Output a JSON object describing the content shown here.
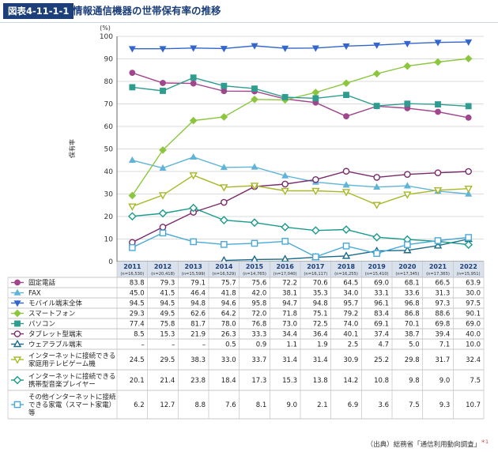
{
  "header": {
    "badge": "図表4-11-1-1",
    "title": "情報通信機器の世帯保有率の推移"
  },
  "source": {
    "text": "（出典）総務省「通信利用動向調査」",
    "mark": "＊1"
  },
  "chart_data": {
    "type": "line",
    "ylabel": "保有率",
    "yunit": "(%)",
    "ylim": [
      0,
      100
    ],
    "yticks": [
      0,
      10,
      20,
      30,
      40,
      50,
      60,
      70,
      80,
      90,
      100
    ],
    "grid": true,
    "legend": "table-below",
    "x": [
      "2011",
      "2012",
      "2013",
      "2014",
      "2015",
      "2016",
      "2017",
      "2018",
      "2019",
      "2020",
      "2021",
      "2022"
    ],
    "n": [
      "(n=16,530)",
      "(n=20,418)",
      "(n=15,599)",
      "(n=16,529)",
      "(n=14,765)",
      "(n=17,040)",
      "(n=16,117)",
      "(n=16,255)",
      "(n=15,410)",
      "(n=17,345)",
      "(n=17,365)",
      "(n=15,951)"
    ],
    "series": [
      {
        "name": "固定電話",
        "color": "#a0468c",
        "marker": "circle",
        "values": [
          83.8,
          79.3,
          79.1,
          75.7,
          75.6,
          72.2,
          70.6,
          64.5,
          69.0,
          68.1,
          66.5,
          63.9
        ],
        "labels": [
          "83.8",
          "79.3",
          "79.1",
          "75.7",
          "75.6",
          "72.2",
          "70.6",
          "64.5",
          "69.0",
          "68.1",
          "66.5",
          "63.9"
        ]
      },
      {
        "name": "FAX",
        "color": "#5fb4d8",
        "marker": "triangle",
        "values": [
          45.0,
          41.5,
          46.4,
          41.8,
          42.0,
          38.1,
          35.3,
          34.0,
          33.1,
          33.6,
          31.3,
          30.0
        ],
        "labels": [
          "45.0",
          "41.5",
          "46.4",
          "41.8",
          "42.0",
          "38.1",
          "35.3",
          "34.0",
          "33.1",
          "33.6",
          "31.3",
          "30.0"
        ]
      },
      {
        "name": "モバイル端末全体",
        "color": "#3366cc",
        "marker": "triangle-down",
        "values": [
          94.5,
          94.5,
          94.8,
          94.6,
          95.8,
          94.7,
          94.8,
          95.7,
          96.1,
          96.8,
          97.3,
          97.5
        ],
        "labels": [
          "94.5",
          "94.5",
          "94.8",
          "94.6",
          "95.8",
          "94.7",
          "94.8",
          "95.7",
          "96.1",
          "96.8",
          "97.3",
          "97.5"
        ]
      },
      {
        "name": "スマートフォン",
        "color": "#8cc63f",
        "marker": "diamond",
        "values": [
          29.3,
          49.5,
          62.6,
          64.2,
          72.0,
          71.8,
          75.1,
          79.2,
          83.4,
          86.8,
          88.6,
          90.1
        ],
        "labels": [
          "29.3",
          "49.5",
          "62.6",
          "64.2",
          "72.0",
          "71.8",
          "75.1",
          "79.2",
          "83.4",
          "86.8",
          "88.6",
          "90.1"
        ]
      },
      {
        "name": "パソコン",
        "color": "#2e9c8e",
        "marker": "square",
        "values": [
          77.4,
          75.8,
          81.7,
          78.0,
          76.8,
          73.0,
          72.5,
          74.0,
          69.1,
          70.1,
          69.8,
          69.0
        ],
        "labels": [
          "77.4",
          "75.8",
          "81.7",
          "78.0",
          "76.8",
          "73.0",
          "72.5",
          "74.0",
          "69.1",
          "70.1",
          "69.8",
          "69.0"
        ]
      },
      {
        "name": "タブレット型端末",
        "color": "#7a2a6a",
        "marker": "circle-open",
        "values": [
          8.5,
          15.3,
          21.9,
          26.3,
          33.3,
          34.4,
          36.4,
          40.1,
          37.4,
          38.7,
          39.4,
          40.0
        ],
        "labels": [
          "8.5",
          "15.3",
          "21.9",
          "26.3",
          "33.3",
          "34.4",
          "36.4",
          "40.1",
          "37.4",
          "38.7",
          "39.4",
          "40.0"
        ]
      },
      {
        "name": "ウェアラブル端末",
        "color": "#1a6a8a",
        "marker": "triangle-open",
        "values": [
          null,
          null,
          null,
          0.5,
          0.9,
          1.1,
          1.9,
          2.5,
          4.7,
          5.0,
          7.1,
          10.0
        ],
        "labels": [
          "–",
          "–",
          "–",
          "0.5",
          "0.9",
          "1.1",
          "1.9",
          "2.5",
          "4.7",
          "5.0",
          "7.1",
          "10.0"
        ]
      },
      {
        "name": "インターネットに接続できる家庭用テレビゲーム機",
        "color": "#a8b828",
        "marker": "triangle-down-open",
        "values": [
          24.5,
          29.5,
          38.3,
          33.0,
          33.7,
          31.4,
          31.4,
          30.9,
          25.2,
          29.8,
          31.7,
          32.4
        ],
        "labels": [
          "24.5",
          "29.5",
          "38.3",
          "33.0",
          "33.7",
          "31.4",
          "31.4",
          "30.9",
          "25.2",
          "29.8",
          "31.7",
          "32.4"
        ]
      },
      {
        "name": "インターネットに接続できる携帯型音楽プレイヤー",
        "color": "#1a9a8a",
        "marker": "diamond-open",
        "values": [
          20.1,
          21.4,
          23.8,
          18.4,
          17.3,
          15.3,
          13.8,
          14.2,
          10.8,
          9.8,
          9.0,
          7.5
        ],
        "labels": [
          "20.1",
          "21.4",
          "23.8",
          "18.4",
          "17.3",
          "15.3",
          "13.8",
          "14.2",
          "10.8",
          "9.8",
          "9.0",
          "7.5"
        ]
      },
      {
        "name": "その他インターネットに接続できる家電（スマート家電）等",
        "color": "#4aa8d8",
        "marker": "square-open",
        "values": [
          6.2,
          12.7,
          8.8,
          7.6,
          8.1,
          9.0,
          2.1,
          6.9,
          3.6,
          7.5,
          9.3,
          10.7
        ],
        "labels": [
          "6.2",
          "12.7",
          "8.8",
          "7.6",
          "8.1",
          "9.0",
          "2.1",
          "6.9",
          "3.6",
          "7.5",
          "9.3",
          "10.7"
        ]
      }
    ]
  }
}
